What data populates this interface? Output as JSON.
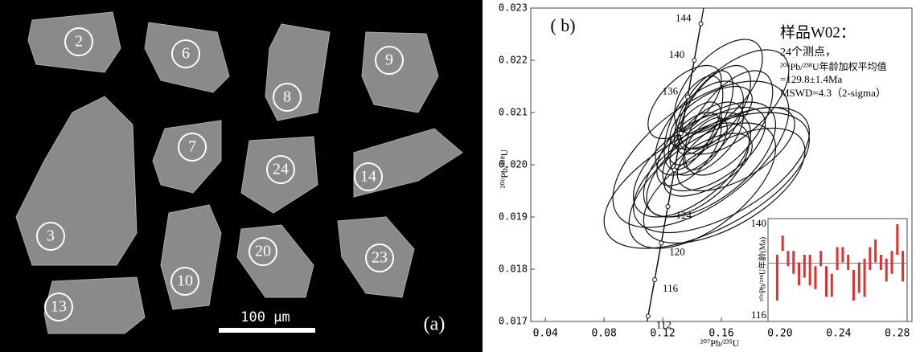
{
  "panel_a": {
    "label": "(a)",
    "scale_bar": "100 μm",
    "grains": [
      "2",
      "6",
      "8",
      "9",
      "7",
      "24",
      "14",
      "3",
      "10",
      "20",
      "23",
      "13"
    ]
  },
  "chart_data": {
    "type": "concordia",
    "panel_label": "( b)",
    "xlabel": "²⁰⁷Pb/²³⁵U",
    "ylabel": "²⁰⁶Pb/²³⁸U",
    "notes": [
      "样品W02：",
      "24个测点，",
      "²⁰⁶Pb/²³⁸U年龄加权平均值",
      "=129.8±1.4Ma",
      "MSWD=4.3（2-sigma）"
    ],
    "xlim": [
      0.03,
      0.29
    ],
    "ylim": [
      0.017,
      0.023
    ],
    "xticks": [
      0.04,
      0.08,
      0.12,
      0.16,
      {
        "value": 0.2,
        "label": "0.20"
      },
      0.24,
      0.28
    ],
    "yticks": [
      0.017,
      0.018,
      0.019,
      {
        "value": 0.02,
        "label": "0.020"
      },
      0.021,
      0.022,
      0.023
    ],
    "concordia": {
      "ages": [
        112,
        116,
        120,
        124,
        null,
        null,
        136,
        140,
        144
      ],
      "x": [
        0.11,
        0.1145,
        0.119,
        0.1235,
        0.128,
        0.1325,
        0.137,
        0.1415,
        0.146
      ],
      "y": [
        0.0171,
        0.0178,
        0.0185,
        0.0192,
        0.0199,
        0.0206,
        0.0213,
        0.022,
        0.0227
      ]
    },
    "error_correlation": 0.6,
    "ellipses": [
      {
        "x": 0.15,
        "y": 0.0205,
        "sx": 0.025,
        "sy": 0.0007
      },
      {
        "x": 0.145,
        "y": 0.0207,
        "sx": 0.03,
        "sy": 0.0009
      },
      {
        "x": 0.155,
        "y": 0.0203,
        "sx": 0.035,
        "sy": 0.0008
      },
      {
        "x": 0.14,
        "y": 0.02,
        "sx": 0.04,
        "sy": 0.001
      },
      {
        "x": 0.16,
        "y": 0.0199,
        "sx": 0.06,
        "sy": 0.0012
      },
      {
        "x": 0.15,
        "y": 0.0197,
        "sx": 0.07,
        "sy": 0.0013
      },
      {
        "x": 0.148,
        "y": 0.021,
        "sx": 0.02,
        "sy": 0.0008
      },
      {
        "x": 0.135,
        "y": 0.0212,
        "sx": 0.025,
        "sy": 0.0007
      },
      {
        "x": 0.165,
        "y": 0.0208,
        "sx": 0.03,
        "sy": 0.001
      },
      {
        "x": 0.152,
        "y": 0.0201,
        "sx": 0.045,
        "sy": 0.0011
      },
      {
        "x": 0.142,
        "y": 0.0206,
        "sx": 0.018,
        "sy": 0.0006
      },
      {
        "x": 0.158,
        "y": 0.0215,
        "sx": 0.03,
        "sy": 0.0009
      },
      {
        "x": 0.147,
        "y": 0.0196,
        "sx": 0.05,
        "sy": 0.0012
      },
      {
        "x": 0.17,
        "y": 0.0203,
        "sx": 0.04,
        "sy": 0.0008
      },
      {
        "x": 0.138,
        "y": 0.0203,
        "sx": 0.022,
        "sy": 0.0007
      },
      {
        "x": 0.153,
        "y": 0.0209,
        "sx": 0.028,
        "sy": 0.0006
      },
      {
        "x": 0.144,
        "y": 0.0199,
        "sx": 0.035,
        "sy": 0.0009
      },
      {
        "x": 0.162,
        "y": 0.0196,
        "sx": 0.055,
        "sy": 0.0011
      },
      {
        "x": 0.149,
        "y": 0.0204,
        "sx": 0.015,
        "sy": 0.0005
      },
      {
        "x": 0.156,
        "y": 0.0211,
        "sx": 0.024,
        "sy": 0.0008
      },
      {
        "x": 0.141,
        "y": 0.0208,
        "sx": 0.02,
        "sy": 0.0009
      },
      {
        "x": 0.168,
        "y": 0.0212,
        "sx": 0.038,
        "sy": 0.001
      },
      {
        "x": 0.146,
        "y": 0.0202,
        "sx": 0.06,
        "sy": 0.0014
      },
      {
        "x": 0.151,
        "y": 0.02,
        "sx": 0.03,
        "sy": 0.0006
      }
    ],
    "inset": {
      "ylabel": "²⁰⁶Pb/²³⁸U年龄(Ma)",
      "ylim": [
        116,
        140
      ],
      "yticks": [
        116,
        140
      ],
      "mean": 129.8,
      "color": "#e03030",
      "values": [
        126,
        135,
        131,
        130,
        127,
        129,
        128,
        126,
        131,
        125,
        124,
        131,
        132,
        130,
        124,
        126,
        126,
        131,
        133,
        130,
        128,
        130,
        136,
        129
      ],
      "errors": [
        6,
        2,
        2,
        3,
        3,
        3,
        4,
        3,
        2,
        4,
        3,
        3,
        2,
        2,
        4,
        4,
        5,
        3,
        3,
        2,
        3,
        3,
        4,
        4
      ]
    }
  }
}
